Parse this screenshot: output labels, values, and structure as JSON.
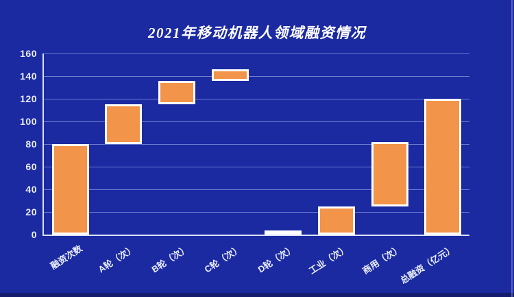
{
  "title": "2021年移动机器人领域融资情况",
  "chart_data": {
    "type": "bar",
    "subtype": "floating-range-bars",
    "title": "2021年移动机器人领域融资情况",
    "categories": [
      "融资次数",
      "A轮（次）",
      "B轮（次）",
      "C轮（次）",
      "D轮（次）",
      "工业（次）",
      "商用（次）",
      "总融资（亿元）"
    ],
    "bars": [
      {
        "label": "融资次数",
        "start": 0,
        "end": 80
      },
      {
        "label": "A轮（次）",
        "start": 80,
        "end": 115
      },
      {
        "label": "B轮（次）",
        "start": 115,
        "end": 136
      },
      {
        "label": "C轮（次）",
        "start": 136,
        "end": 146
      },
      {
        "label": "D轮（次）",
        "start": 0,
        "end": 3
      },
      {
        "label": "工业（次）",
        "start": 0,
        "end": 25
      },
      {
        "label": "商用（次）",
        "start": 25,
        "end": 82
      },
      {
        "label": "总融资（亿元）",
        "start": 0,
        "end": 120
      }
    ],
    "y_axis": {
      "min": 0,
      "max": 160,
      "step": 20,
      "ticks": [
        "0",
        "20",
        "40",
        "60",
        "80",
        "100",
        "120",
        "140",
        "160"
      ]
    },
    "x_axis": {
      "label_rotation_deg": -33
    },
    "grid": true,
    "legend": false
  },
  "colors": {
    "background": "#1b2aa1",
    "bar_fill": "#f2954a",
    "bar_border": "#ffffff",
    "gridline": "#6d7cd0",
    "axis_line": "#dbe2f6",
    "tick_label": "#e9edfc",
    "title": "#ffffff",
    "bottom_strip": "#141d6d"
  }
}
